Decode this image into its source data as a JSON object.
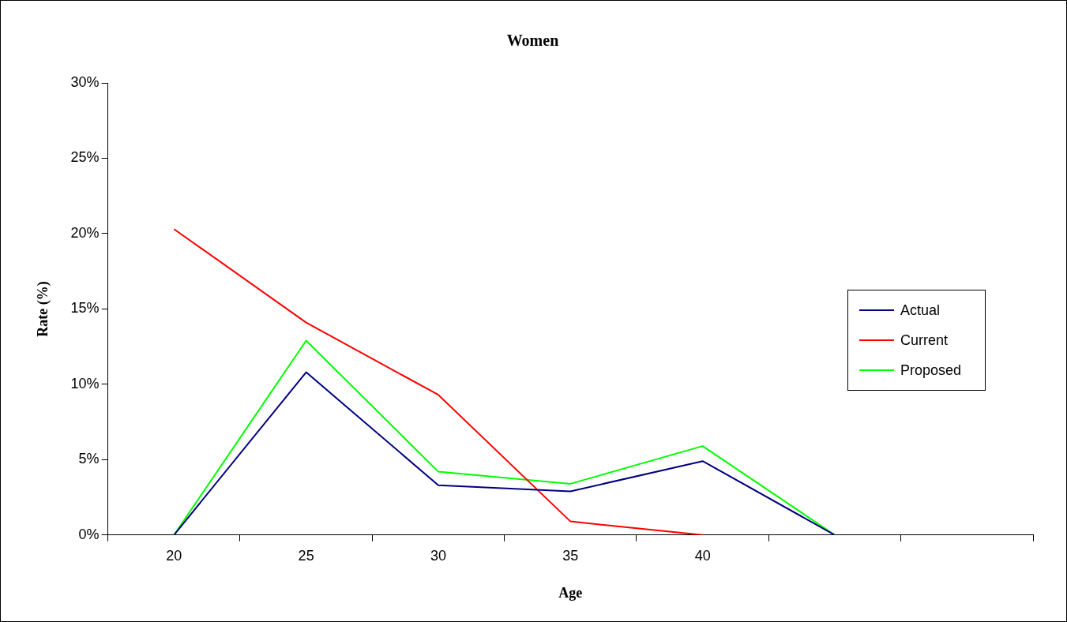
{
  "chart_data": {
    "type": "line",
    "title": "Women",
    "xlabel": "Age",
    "ylabel": "Rate (%)",
    "categories": [
      "20",
      "25",
      "30",
      "35",
      "40",
      null,
      null
    ],
    "series": [
      {
        "name": "Actual",
        "color": "#000080",
        "values": [
          0,
          10.8,
          3.3,
          2.9,
          4.9,
          0,
          null
        ]
      },
      {
        "name": "Current",
        "color": "#ff0000",
        "values": [
          20.3,
          14.1,
          9.3,
          0.9,
          0,
          null,
          null
        ]
      },
      {
        "name": "Proposed",
        "color": "#00ff00",
        "values": [
          0,
          12.9,
          4.2,
          3.4,
          5.9,
          0,
          null
        ]
      }
    ],
    "ylim": [
      0,
      30
    ],
    "yticks": [
      {
        "value": 0,
        "label": "0%"
      },
      {
        "value": 5,
        "label": "5%"
      },
      {
        "value": 10,
        "label": "10%"
      },
      {
        "value": 15,
        "label": "15%"
      },
      {
        "value": 20,
        "label": "20%"
      },
      {
        "value": 25,
        "label": "25%"
      },
      {
        "value": 30,
        "label": "30%"
      }
    ],
    "grid": false,
    "legend": "right",
    "marker": "none",
    "line_style": "solid"
  }
}
